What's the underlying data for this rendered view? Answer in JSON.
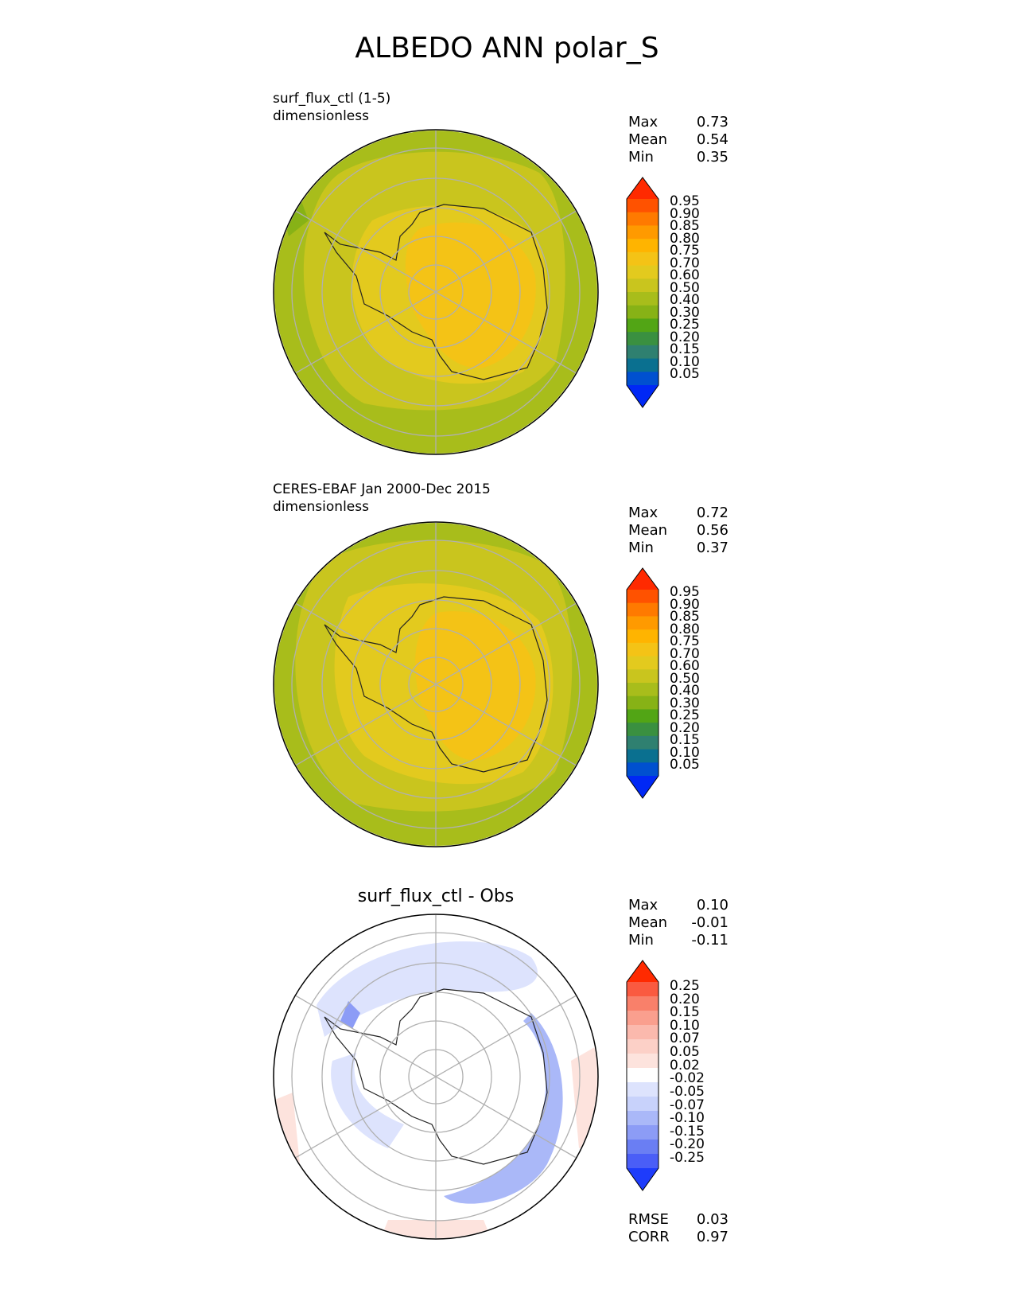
{
  "title": "ALBEDO ANN polar_S",
  "panels": [
    {
      "id": "test",
      "label_line1": "surf_flux_ctl (1-5)",
      "label_line2": "dimensionless",
      "stats": [
        {
          "label": "Max",
          "value": "0.73"
        },
        {
          "label": "Mean",
          "value": "0.54"
        },
        {
          "label": "Min",
          "value": "0.35"
        }
      ],
      "colorbar": {
        "ticks": [
          "0.95",
          "0.90",
          "0.85",
          "0.80",
          "0.75",
          "0.70",
          "0.60",
          "0.50",
          "0.40",
          "0.30",
          "0.25",
          "0.20",
          "0.15",
          "0.10",
          "0.05"
        ],
        "colors": [
          "#ff2a00",
          "#ff5200",
          "#ff7a00",
          "#ff9a00",
          "#ffb400",
          "#f4c316",
          "#e3ca1e",
          "#c9c51e",
          "#a8bd1b",
          "#87b216",
          "#52a515",
          "#3a9040",
          "#2f8070",
          "#0a7090",
          "#0050d0",
          "#0028f5"
        ]
      }
    },
    {
      "id": "ref",
      "label_line1": "CERES-EBAF Jan 2000-Dec 2015",
      "label_line2": "dimensionless",
      "stats": [
        {
          "label": "Max",
          "value": "0.72"
        },
        {
          "label": "Mean",
          "value": "0.56"
        },
        {
          "label": "Min",
          "value": "0.37"
        }
      ],
      "colorbar": {
        "ticks": [
          "0.95",
          "0.90",
          "0.85",
          "0.80",
          "0.75",
          "0.70",
          "0.60",
          "0.50",
          "0.40",
          "0.30",
          "0.25",
          "0.20",
          "0.15",
          "0.10",
          "0.05"
        ],
        "colors": [
          "#ff2a00",
          "#ff5200",
          "#ff7a00",
          "#ff9a00",
          "#ffb400",
          "#f4c316",
          "#e3ca1e",
          "#c9c51e",
          "#a8bd1b",
          "#87b216",
          "#52a515",
          "#3a9040",
          "#2f8070",
          "#0a7090",
          "#0050d0",
          "#0028f5"
        ]
      }
    },
    {
      "id": "diff",
      "title": "surf_flux_ctl - Obs",
      "stats": [
        {
          "label": "Max",
          "value": "0.10"
        },
        {
          "label": "Mean",
          "value": "-0.01"
        },
        {
          "label": "Min",
          "value": "-0.11"
        }
      ],
      "colorbar": {
        "ticks": [
          "0.25",
          "0.20",
          "0.15",
          "0.10",
          "0.07",
          "0.05",
          "0.02",
          "-0.02",
          "-0.05",
          "-0.07",
          "-0.10",
          "-0.15",
          "-0.20",
          "-0.25"
        ],
        "colors": [
          "#ff2a00",
          "#fa5a40",
          "#f9806a",
          "#fa9f8e",
          "#fbb9ad",
          "#fcd0c7",
          "#fde3dd",
          "#ffffff",
          "#dde3fd",
          "#c8d2fb",
          "#aab8f8",
          "#8c9cf6",
          "#6a7ef3",
          "#4a5ef7",
          "#1e3cfb"
        ]
      },
      "extra_stats": [
        {
          "label": "RMSE",
          "value": "0.03"
        },
        {
          "label": "CORR",
          "value": "0.97"
        }
      ]
    }
  ]
}
